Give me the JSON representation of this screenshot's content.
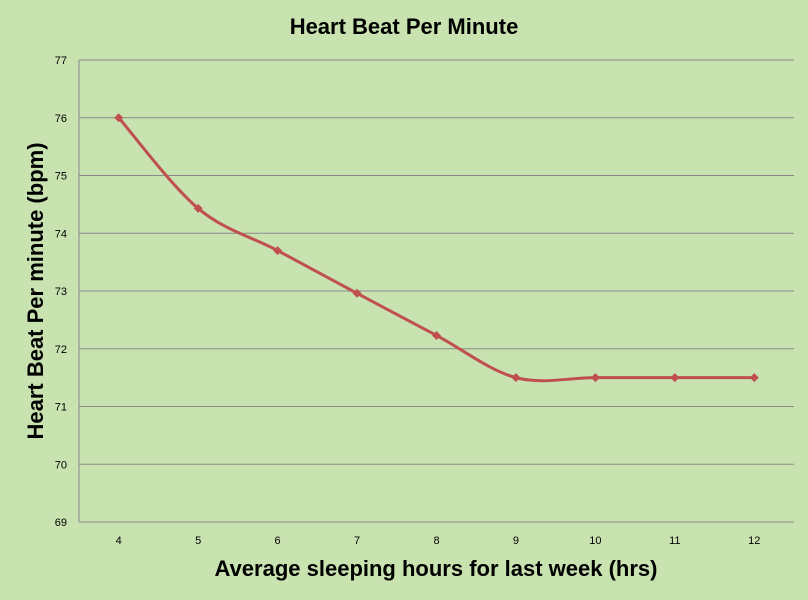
{
  "chart_data": {
    "type": "line",
    "title": "Heart Beat Per Minute",
    "xlabel": "Average sleeping hours for last week (hrs)",
    "ylabel": "Heart Beat Per minute (bpm)",
    "ylim": [
      69,
      77
    ],
    "yticks": [
      69,
      70,
      71,
      72,
      73,
      74,
      75,
      76,
      77
    ],
    "categories": [
      "4",
      "5",
      "6",
      "7",
      "8",
      "9",
      "10",
      "11",
      "12"
    ],
    "grid": true,
    "legend": "none",
    "series": [
      {
        "values": [
          76,
          74.43,
          73.7,
          72.96,
          72.23,
          71.5,
          71.5,
          71.5,
          71.5
        ],
        "color": "#c0504d",
        "smooth": true,
        "marker": "diamond"
      }
    ]
  }
}
